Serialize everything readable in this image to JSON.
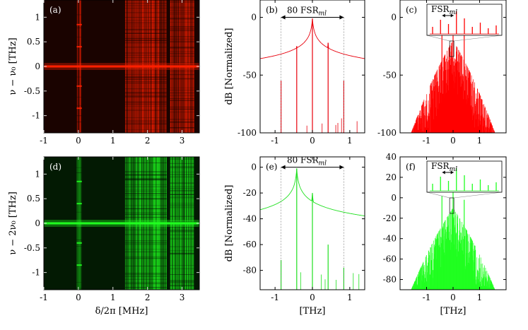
{
  "chart_data": [
    {
      "id": "a",
      "type": "heatmap",
      "panel_label": "(a)",
      "color": "#ff2000",
      "xlim": [
        -1,
        3.5
      ],
      "ylim": [
        -1.35,
        1.35
      ],
      "xticks": [
        {
          "v": -1,
          "t": "-1"
        },
        {
          "v": 0,
          "t": "0"
        },
        {
          "v": 1,
          "t": "1"
        },
        {
          "v": 2,
          "t": "2"
        },
        {
          "v": 3,
          "t": "3"
        }
      ],
      "yticks": [
        {
          "v": 1,
          "t": "1"
        },
        {
          "v": 0.5,
          "t": "0.5"
        },
        {
          "v": 0,
          "t": "0"
        },
        {
          "v": -0.5,
          "t": "-0.5"
        },
        {
          "v": -1,
          "t": "-1"
        }
      ],
      "ylabel": "ν − ν₀ [THz]",
      "xlabel": "",
      "bands": [
        [
          -0.05,
          0.1
        ],
        [
          1.35,
          2.55
        ],
        [
          2.65,
          3.35
        ]
      ]
    },
    {
      "id": "b",
      "type": "line",
      "panel_label": "(b)",
      "color": "#e8000c",
      "xlim": [
        -1.4,
        1.4
      ],
      "ylim": [
        -100,
        15
      ],
      "xticks": [
        {
          "v": -1,
          "t": "-1"
        },
        {
          "v": 0,
          "t": "0"
        },
        {
          "v": 1,
          "t": "1"
        }
      ],
      "yticks": [
        {
          "v": 0,
          "t": "0"
        },
        {
          "v": -50,
          "t": "-50"
        },
        {
          "v": -100,
          "t": "-100"
        }
      ],
      "ylabel": "dB [Normalized]",
      "xlabel": "",
      "annotation": {
        "text": "80 FSR",
        "sub": "ml",
        "x_from": -0.84,
        "x_to": 0.84,
        "y": 0
      },
      "peaks": [
        {
          "x": -0.84,
          "y": -55
        },
        {
          "x": -0.42,
          "y": -25
        },
        {
          "x": 0,
          "y": -1
        },
        {
          "x": 0.42,
          "y": -22
        },
        {
          "x": 0.84,
          "y": -55
        }
      ]
    },
    {
      "id": "c",
      "type": "line",
      "panel_label": "(c)",
      "color": "#ff0000",
      "xlim": [
        -2,
        2
      ],
      "ylim": [
        -100,
        15
      ],
      "xticks": [
        {
          "v": -1,
          "t": "-1"
        },
        {
          "v": 0,
          "t": "0"
        },
        {
          "v": 1,
          "t": "1"
        }
      ],
      "yticks": [
        {
          "v": 0,
          "t": "0"
        },
        {
          "v": -50,
          "t": "-50"
        },
        {
          "v": -100,
          "t": "-100"
        }
      ],
      "ylabel": "",
      "xlabel": "",
      "inset_label": {
        "text": "FSR",
        "sub": "ml"
      },
      "envelope_peak": -20
    },
    {
      "id": "d",
      "type": "heatmap",
      "panel_label": "(d)",
      "color": "#20ff20",
      "xlim": [
        -1,
        3.5
      ],
      "ylim": [
        -1.35,
        1.35
      ],
      "xticks": [
        {
          "v": -1,
          "t": "-1"
        },
        {
          "v": 0,
          "t": "0"
        },
        {
          "v": 1,
          "t": "1"
        },
        {
          "v": 2,
          "t": "2"
        },
        {
          "v": 3,
          "t": "3"
        }
      ],
      "yticks": [
        {
          "v": 1,
          "t": "1"
        },
        {
          "v": 0.5,
          "t": "0.5"
        },
        {
          "v": 0,
          "t": "0"
        },
        {
          "v": -0.5,
          "t": "-0.5"
        },
        {
          "v": -1,
          "t": "-1"
        }
      ],
      "ylabel": "ν − 2ν₀ [THz]",
      "xlabel": "δ/2π [MHz]",
      "bands": [
        [
          -0.05,
          0.1
        ],
        [
          1.35,
          2.55
        ],
        [
          2.65,
          3.35
        ]
      ]
    },
    {
      "id": "e",
      "type": "line",
      "panel_label": "(e)",
      "color": "#20e020",
      "xlim": [
        -1.4,
        1.4
      ],
      "ylim": [
        -95,
        8
      ],
      "xticks": [
        {
          "v": -1,
          "t": "-1"
        },
        {
          "v": 0,
          "t": "0"
        },
        {
          "v": 1,
          "t": "1"
        }
      ],
      "yticks": [
        {
          "v": 0,
          "t": "0"
        },
        {
          "v": -20,
          "t": "-20"
        },
        {
          "v": -40,
          "t": "-40"
        },
        {
          "v": -60,
          "t": "-60"
        },
        {
          "v": -80,
          "t": "-80"
        }
      ],
      "ylabel": "dB [Normalized]",
      "xlabel": "[THz]",
      "annotation": {
        "text": "80 FSR",
        "sub": "ml",
        "x_from": -0.84,
        "x_to": 0.84,
        "y": 0
      },
      "peaks": [
        {
          "x": -0.84,
          "y": -72
        },
        {
          "x": -0.42,
          "y": -1
        },
        {
          "x": 0,
          "y": -20
        },
        {
          "x": 0.42,
          "y": -60
        },
        {
          "x": 0.84,
          "y": -78
        }
      ]
    },
    {
      "id": "f",
      "type": "line",
      "panel_label": "(f)",
      "color": "#20ff20",
      "xlim": [
        -2,
        2
      ],
      "ylim": [
        -90,
        40
      ],
      "xticks": [
        {
          "v": -1,
          "t": "-1"
        },
        {
          "v": 0,
          "t": "0"
        },
        {
          "v": 1,
          "t": "1"
        }
      ],
      "yticks": [
        {
          "v": 40,
          "t": "40"
        },
        {
          "v": 20,
          "t": "20"
        },
        {
          "v": 0,
          "t": "0"
        },
        {
          "v": -20,
          "t": "-20"
        },
        {
          "v": -40,
          "t": "-40"
        },
        {
          "v": -60,
          "t": "-60"
        },
        {
          "v": -80,
          "t": "-80"
        }
      ],
      "ylabel": "",
      "xlabel": "[THz]",
      "inset_label": {
        "text": "FSR",
        "sub": "ml"
      },
      "envelope_peak": -10
    }
  ]
}
